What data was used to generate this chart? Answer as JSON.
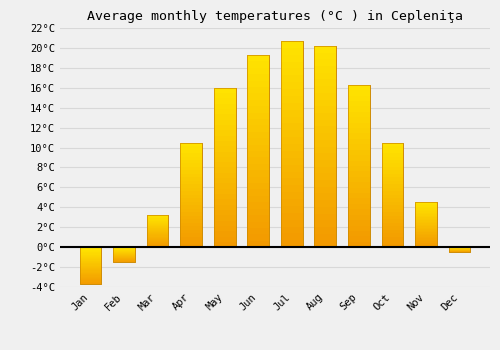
{
  "title": "Average monthly temperatures (°C ) in Cepleniţa",
  "months": [
    "Jan",
    "Feb",
    "Mar",
    "Apr",
    "May",
    "Jun",
    "Jul",
    "Aug",
    "Sep",
    "Oct",
    "Nov",
    "Dec"
  ],
  "values": [
    -3.7,
    -1.5,
    3.2,
    10.5,
    16.0,
    19.3,
    20.7,
    20.2,
    16.3,
    10.5,
    4.5,
    -0.5
  ],
  "bar_color_top": "#FFB300",
  "bar_color_bottom": "#FF8C00",
  "bar_edge_color": "#CC8800",
  "ylim": [
    -4,
    22
  ],
  "yticks": [
    -4,
    -2,
    0,
    2,
    4,
    6,
    8,
    10,
    12,
    14,
    16,
    18,
    20,
    22
  ],
  "ytick_labels": [
    "-4°C",
    "-2°C",
    "0°C",
    "2°C",
    "4°C",
    "6°C",
    "8°C",
    "10°C",
    "12°C",
    "14°C",
    "16°C",
    "18°C",
    "20°C",
    "22°C"
  ],
  "bg_color": "#F0F0F0",
  "grid_color": "#D8D8D8",
  "title_fontsize": 9.5,
  "tick_fontsize": 7.5,
  "bar_width": 0.65
}
